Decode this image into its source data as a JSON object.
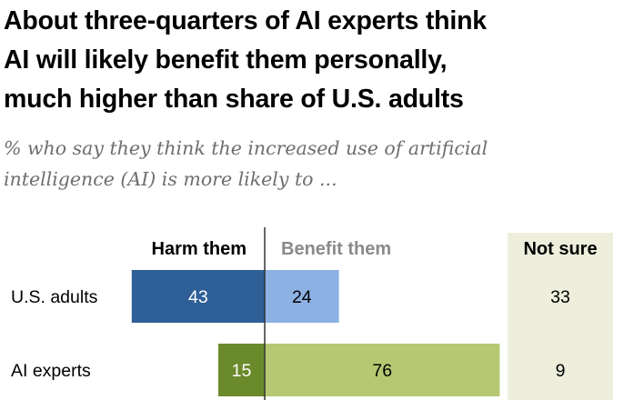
{
  "title_lines": [
    "About three-quarters of AI experts think",
    "AI will likely benefit them personally,",
    "much higher than share of U.S. adults"
  ],
  "subtitle_lines": [
    "% who say they think the increased use of artificial",
    "intelligence (AI) is more likely to ..."
  ],
  "colors": {
    "adults_harm": "#2f5f97",
    "adults_benefit": "#8db1e3",
    "experts_harm": "#6b8a2c",
    "experts_benefit": "#b6c872",
    "not_sure_bg": "#eeeedd",
    "benefit_header": "#8a8a8a",
    "axis_line": "#333333"
  },
  "chart_data": {
    "type": "bar",
    "orientation": "horizontal",
    "stacked": "diverging",
    "title": "About three-quarters of AI experts think AI will likely benefit them personally, much higher than share of U.S. adults",
    "subtitle": "% who say they think the increased use of artificial intelligence (AI) is more likely to ...",
    "categories": [
      "U.S. adults",
      "AI experts"
    ],
    "series": [
      {
        "name": "Harm them",
        "values": [
          43,
          15
        ]
      },
      {
        "name": "Benefit them",
        "values": [
          24,
          76
        ]
      },
      {
        "name": "Not sure",
        "values": [
          33,
          9
        ]
      }
    ],
    "legend": "column headers above bars"
  }
}
